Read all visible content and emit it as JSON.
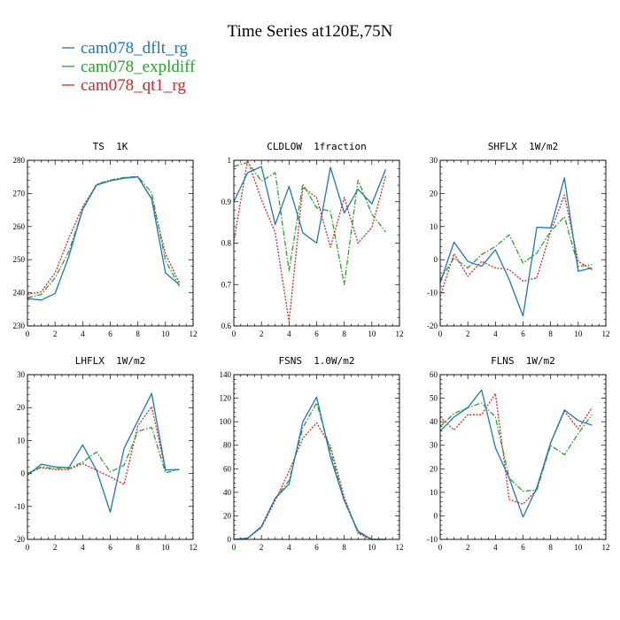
{
  "figure": {
    "title": "Time Series at120E,75N",
    "legend": [
      {
        "name": "cam078_dflt_rg",
        "color": "#1f77b4",
        "dash": "solid"
      },
      {
        "name": "cam078_expldiff",
        "color": "#2ca02c",
        "dash": "dashdot"
      },
      {
        "name": "cam078_qt1_rg",
        "color": "#d62728",
        "dash": "dotted"
      }
    ]
  },
  "chart_data": [
    {
      "type": "line",
      "title": "TS  1K",
      "x": [
        0,
        1,
        2,
        3,
        4,
        5,
        6,
        7,
        8,
        9,
        10,
        11
      ],
      "xticks": [
        0,
        2,
        4,
        6,
        8,
        10,
        12
      ],
      "xlim": [
        0,
        12
      ],
      "ylim": [
        230,
        280
      ],
      "yticks": [
        230,
        240,
        250,
        260,
        270,
        280
      ],
      "series": [
        {
          "name": "cam078_dflt_rg",
          "values": [
            238.3,
            237.8,
            239.8,
            251,
            265.2,
            272.5,
            273.8,
            274.6,
            275,
            268.3,
            246,
            242.5
          ]
        },
        {
          "name": "cam078_expldiff",
          "values": [
            238.5,
            239.5,
            244.5,
            252.5,
            265,
            272.8,
            274,
            274.8,
            275.1,
            270.2,
            249.8,
            242
          ]
        },
        {
          "name": "cam078_qt1_rg",
          "values": [
            239.5,
            240.3,
            246,
            256.5,
            266,
            272.5,
            274,
            274.8,
            275,
            268.5,
            251.8,
            243
          ]
        }
      ]
    },
    {
      "type": "line",
      "title": "CLDLOW  1fraction",
      "x": [
        0,
        1,
        2,
        3,
        4,
        5,
        6,
        7,
        8,
        9,
        10,
        11
      ],
      "xticks": [
        0,
        2,
        4,
        6,
        8,
        10,
        12
      ],
      "xlim": [
        0,
        12
      ],
      "ylim": [
        0.6,
        1.0
      ],
      "yticks": [
        0.6,
        0.7,
        0.8,
        0.9,
        1.0
      ],
      "series": [
        {
          "name": "cam078_dflt_rg",
          "values": [
            0.9,
            0.97,
            0.985,
            0.845,
            0.937,
            0.825,
            0.8,
            0.983,
            0.873,
            0.93,
            0.895,
            0.978
          ]
        },
        {
          "name": "cam078_expldiff",
          "values": [
            0.985,
            0.995,
            0.95,
            0.97,
            0.733,
            0.943,
            0.885,
            0.877,
            0.7,
            0.952,
            0.87,
            0.827
          ]
        },
        {
          "name": "cam078_qt1_rg",
          "values": [
            0.805,
            1.0,
            0.905,
            0.825,
            0.61,
            0.935,
            0.91,
            0.79,
            0.91,
            0.8,
            0.838,
            0.962
          ]
        }
      ]
    },
    {
      "type": "line",
      "title": "SHFLX  1W/m2",
      "x": [
        0,
        1,
        2,
        3,
        4,
        5,
        6,
        7,
        8,
        9,
        10,
        11
      ],
      "xticks": [
        0,
        2,
        4,
        6,
        8,
        10,
        12
      ],
      "xlim": [
        0,
        12
      ],
      "ylim": [
        -20,
        30
      ],
      "yticks": [
        -20,
        -10,
        0,
        10,
        20,
        30
      ],
      "series": [
        {
          "name": "cam078_dflt_rg",
          "values": [
            -7,
            5.3,
            -0.5,
            -2,
            3,
            -6,
            -17,
            9.8,
            9.6,
            24.7,
            -3.5,
            -2.5
          ]
        },
        {
          "name": "cam078_expldiff",
          "values": [
            -6,
            0.5,
            -2.5,
            1.5,
            4,
            7.5,
            -1,
            2,
            8.5,
            13,
            -2,
            -1.5
          ]
        },
        {
          "name": "cam078_qt1_rg",
          "values": [
            -11,
            1.8,
            -5,
            -0.5,
            -2.5,
            -3,
            -6.5,
            -5.5,
            8.5,
            19.5,
            -0.5,
            -3
          ]
        }
      ]
    },
    {
      "type": "line",
      "title": "LHFLX  1W/m2",
      "x": [
        0,
        1,
        2,
        3,
        4,
        5,
        6,
        7,
        8,
        9,
        10,
        11
      ],
      "xticks": [
        0,
        2,
        4,
        6,
        8,
        10,
        12
      ],
      "xlim": [
        0,
        12
      ],
      "ylim": [
        -20,
        30
      ],
      "yticks": [
        -20,
        -10,
        0,
        10,
        20,
        30
      ],
      "series": [
        {
          "name": "cam078_dflt_rg",
          "values": [
            -0.5,
            2.8,
            2,
            1.8,
            8.7,
            1,
            -11.7,
            7.6,
            16,
            24.3,
            1.1,
            1.2
          ]
        },
        {
          "name": "cam078_expldiff",
          "values": [
            0,
            2,
            1.5,
            1.5,
            3.5,
            6.5,
            0.5,
            2.5,
            12.8,
            14,
            0.2,
            1.3
          ]
        },
        {
          "name": "cam078_qt1_rg",
          "values": [
            0,
            1.8,
            1.2,
            1.2,
            3,
            1,
            -1,
            -3.3,
            14.5,
            20.3,
            1,
            1.2
          ]
        }
      ]
    },
    {
      "type": "line",
      "title": "FSNS  1.0W/m2",
      "x": [
        0,
        1,
        2,
        3,
        4,
        5,
        6,
        7,
        8,
        9,
        10,
        11
      ],
      "xticks": [
        0,
        2,
        4,
        6,
        8,
        10,
        12
      ],
      "xlim": [
        0,
        12
      ],
      "ylim": [
        0,
        140
      ],
      "yticks": [
        0,
        20,
        40,
        60,
        80,
        100,
        120,
        140
      ],
      "series": [
        {
          "name": "cam078_dflt_rg",
          "values": [
            0,
            1,
            11,
            35,
            47,
            100,
            121,
            70,
            33,
            7,
            0,
            0
          ]
        },
        {
          "name": "cam078_expldiff",
          "values": [
            0,
            1,
            11,
            35,
            50,
            95,
            116,
            75,
            33,
            6,
            0,
            0
          ]
        },
        {
          "name": "cam078_qt1_rg",
          "values": [
            0,
            1,
            10,
            33,
            58,
            86,
            99,
            79,
            36,
            5,
            0,
            0
          ]
        }
      ]
    },
    {
      "type": "line",
      "title": "FLNS  1W/m2",
      "x": [
        0,
        1,
        2,
        3,
        4,
        5,
        6,
        7,
        8,
        9,
        10,
        11
      ],
      "xticks": [
        0,
        2,
        4,
        6,
        8,
        10,
        12
      ],
      "xlim": [
        0,
        12
      ],
      "ylim": [
        -10,
        60
      ],
      "yticks": [
        -10,
        0,
        10,
        20,
        30,
        40,
        50,
        60
      ],
      "series": [
        {
          "name": "cam078_dflt_rg",
          "values": [
            36,
            42,
            46,
            53.5,
            29,
            16,
            -0.5,
            12,
            31,
            45,
            40.5,
            38.5
          ]
        },
        {
          "name": "cam078_expldiff",
          "values": [
            38,
            43.5,
            46,
            48,
            42,
            16,
            10.5,
            11,
            30,
            26,
            35,
            43
          ]
        },
        {
          "name": "cam078_qt1_rg",
          "values": [
            42,
            36.5,
            43,
            43,
            52,
            7,
            5,
            11,
            31,
            44.5,
            37,
            46
          ]
        }
      ]
    }
  ]
}
